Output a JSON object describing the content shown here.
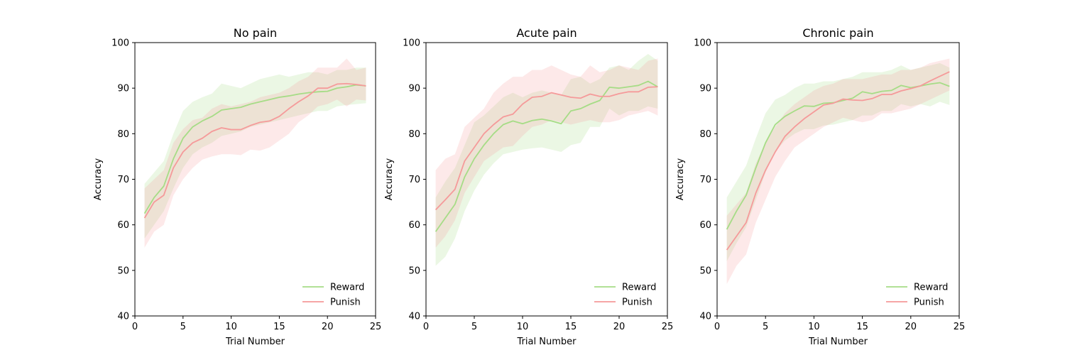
{
  "chart_data": [
    {
      "type": "line",
      "title": "No pain",
      "xlabel": "Trial Number",
      "ylabel": "Accuracy",
      "xlim": [
        0,
        25
      ],
      "ylim": [
        40,
        100
      ],
      "xticks": [
        0,
        5,
        10,
        15,
        20,
        25
      ],
      "yticks": [
        40,
        50,
        60,
        70,
        80,
        90,
        100
      ],
      "legend": "lower-right",
      "x": [
        1,
        2,
        3,
        4,
        5,
        6,
        7,
        8,
        9,
        10,
        11,
        12,
        13,
        14,
        15,
        16,
        17,
        18,
        19,
        20,
        21,
        22,
        23,
        24
      ],
      "series": [
        {
          "name": "Reward",
          "color": "#a6dc86",
          "values": [
            62.5,
            66,
            68.5,
            74.5,
            79,
            81.5,
            82.8,
            83.8,
            85.2,
            85.5,
            85.8,
            86.5,
            87,
            87.5,
            88,
            88.3,
            88.7,
            89,
            89.2,
            89.3,
            90,
            90.3,
            90.7,
            90.5
          ],
          "lower": [
            57,
            60,
            63,
            68,
            72.5,
            75.5,
            77,
            78,
            79.5,
            80,
            80.5,
            81.5,
            82,
            82.5,
            83,
            83.5,
            84,
            84.5,
            85,
            85,
            86,
            86.3,
            86.5,
            86.7
          ],
          "upper": [
            69,
            71.5,
            74,
            80,
            85,
            87,
            88,
            88.8,
            91,
            90.5,
            90,
            91,
            92,
            92.5,
            93,
            92.5,
            93,
            93.5,
            93.5,
            93,
            94,
            94,
            94.5,
            94.5
          ]
        },
        {
          "name": "Punish",
          "color": "#f59a9a",
          "values": [
            61.5,
            65,
            66.5,
            72.5,
            76,
            78,
            79,
            80.5,
            81.3,
            80.9,
            80.9,
            81.8,
            82.5,
            82.8,
            83.8,
            85.5,
            87,
            88.3,
            90,
            90,
            90.9,
            91,
            90.8,
            90.5
          ],
          "lower": [
            55,
            58.5,
            60,
            66.5,
            70,
            72.5,
            74.3,
            75,
            75.5,
            75.5,
            75.3,
            76.5,
            76.3,
            77,
            78.5,
            80,
            82.5,
            84,
            86,
            86.5,
            87.5,
            86,
            87.5,
            87.3
          ],
          "upper": [
            68,
            70,
            72,
            78,
            81,
            83,
            83.5,
            85.5,
            86.5,
            86,
            86.5,
            87,
            88,
            88.5,
            89,
            90,
            91.5,
            92.5,
            94.5,
            94.5,
            94.5,
            96.5,
            94,
            94.5
          ]
        }
      ]
    },
    {
      "type": "line",
      "title": "Acute pain",
      "xlabel": "Trial Number",
      "ylabel": "Accuracy",
      "xlim": [
        0,
        25
      ],
      "ylim": [
        40,
        100
      ],
      "xticks": [
        0,
        5,
        10,
        15,
        20,
        25
      ],
      "yticks": [
        40,
        50,
        60,
        70,
        80,
        90,
        100
      ],
      "legend": "lower-right",
      "x": [
        1,
        2,
        3,
        4,
        5,
        6,
        7,
        8,
        9,
        10,
        11,
        12,
        13,
        14,
        15,
        16,
        17,
        18,
        19,
        20,
        21,
        22,
        23,
        24
      ],
      "series": [
        {
          "name": "Reward",
          "color": "#a6dc86",
          "values": [
            58.5,
            61.5,
            64.5,
            70.5,
            74.5,
            77.5,
            80,
            82,
            82.8,
            82.2,
            82.9,
            83.2,
            82.8,
            82.2,
            85,
            85.5,
            86.5,
            87.3,
            90.2,
            90,
            90.3,
            90.6,
            91.5,
            90.3
          ],
          "lower": [
            51,
            53,
            57,
            63,
            67.5,
            71,
            73.5,
            75.5,
            76,
            76.5,
            76.8,
            77,
            76.5,
            76,
            77.5,
            78,
            81.5,
            81.5,
            85.5,
            84,
            85,
            85,
            86,
            85.5
          ],
          "upper": [
            66,
            69.5,
            72.5,
            77.5,
            82.5,
            84,
            86,
            88,
            89,
            88,
            89,
            89.5,
            89,
            88.5,
            92,
            92.5,
            91,
            92,
            94.5,
            95,
            94,
            96,
            97.5,
            96
          ]
        },
        {
          "name": "Punish",
          "color": "#f59a9a",
          "values": [
            63.3,
            65.5,
            67.8,
            74,
            77,
            80,
            82,
            83.7,
            84.3,
            86.5,
            88,
            88.2,
            89,
            88.5,
            88,
            87.8,
            88.7,
            88.2,
            88.2,
            88.8,
            89.2,
            89.2,
            90.2,
            90.3
          ],
          "lower": [
            55,
            57.5,
            61,
            67,
            70.5,
            74,
            75.5,
            77,
            77.3,
            79.5,
            81.5,
            82,
            83,
            82.5,
            82,
            82.5,
            83,
            82.5,
            82.5,
            83,
            84,
            84.5,
            85,
            84
          ],
          "upper": [
            72,
            74.5,
            75.5,
            81.5,
            83.5,
            85.5,
            89,
            91,
            92.5,
            92.5,
            94,
            94,
            95,
            94,
            93,
            92.5,
            95,
            93.5,
            94,
            95,
            94.5,
            94,
            96,
            96.5
          ]
        }
      ]
    },
    {
      "type": "line",
      "title": "Chronic pain",
      "xlabel": "Trial Number",
      "ylabel": "Accuracy",
      "xlim": [
        0,
        25
      ],
      "ylim": [
        40,
        100
      ],
      "xticks": [
        0,
        5,
        10,
        15,
        20,
        25
      ],
      "yticks": [
        40,
        50,
        60,
        70,
        80,
        90,
        100
      ],
      "legend": "lower-right",
      "x": [
        1,
        2,
        3,
        4,
        5,
        6,
        7,
        8,
        9,
        10,
        11,
        12,
        13,
        14,
        15,
        16,
        17,
        18,
        19,
        20,
        21,
        22,
        23,
        24
      ],
      "series": [
        {
          "name": "Reward",
          "color": "#a6dc86",
          "values": [
            59,
            63,
            66.5,
            72.5,
            78,
            82,
            83.8,
            85,
            86.1,
            86,
            86.7,
            86.8,
            87.3,
            87.8,
            89.2,
            88.8,
            89.3,
            89.5,
            90.6,
            90.1,
            90.5,
            90.9,
            91.2,
            90.4
          ],
          "lower": [
            52,
            56,
            59.5,
            65.5,
            71.5,
            76,
            78.5,
            80,
            81,
            81,
            81.8,
            82,
            82.5,
            83,
            84,
            84,
            85,
            85,
            86.5,
            86,
            86.5,
            86,
            87,
            86.3
          ],
          "upper": [
            66,
            69.5,
            73,
            79,
            84.5,
            87.5,
            88.5,
            90,
            91,
            91,
            91.5,
            91.5,
            92,
            92.5,
            93.5,
            93.5,
            93.5,
            94,
            95,
            94,
            94.5,
            95,
            95.5,
            94.5
          ]
        },
        {
          "name": "Punish",
          "color": "#f59a9a",
          "values": [
            54.5,
            57.5,
            60.5,
            67,
            72,
            76,
            79.4,
            81.5,
            83.3,
            84.8,
            86.3,
            86.7,
            87.6,
            87.4,
            87.3,
            87.7,
            88.6,
            88.6,
            89.4,
            89.9,
            90.5,
            91.6,
            92.6,
            93.6
          ],
          "lower": [
            47,
            51,
            53.5,
            60.5,
            65.5,
            70.5,
            74,
            77,
            78.5,
            80,
            81.5,
            82.5,
            83.5,
            83,
            82.5,
            83,
            84.5,
            84.5,
            85,
            85.5,
            86.5,
            87.5,
            88.5,
            89.5
          ],
          "upper": [
            62,
            64.5,
            67,
            73.5,
            78,
            81.5,
            84.5,
            86.5,
            88,
            89.5,
            90.5,
            91,
            92,
            92,
            92,
            92.5,
            93,
            93,
            94,
            94,
            94.5,
            95.5,
            96,
            96.5
          ]
        }
      ]
    }
  ]
}
